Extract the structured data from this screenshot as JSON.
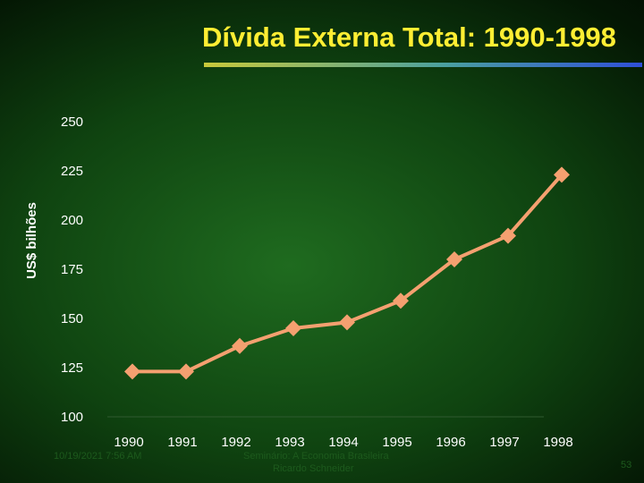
{
  "slide": {
    "title": "Dívida Externa Total: 1990-1998",
    "footer_date": "10/19/2021 7:56 AM",
    "footer_source": "Seminário: A Economia Brasileira",
    "footer_author": "Ricardo Schneider",
    "page_number": "53"
  },
  "colors": {
    "line": "#f4a070",
    "title": "#ffee33",
    "axis_line": "#2f5a2f"
  },
  "chart_data": {
    "type": "line",
    "title": "Dívida Externa Total: 1990-1998",
    "ylabel": "US$ bilhões",
    "xlabel": "",
    "categories": [
      "1990",
      "1991",
      "1992",
      "1993",
      "1994",
      "1995",
      "1996",
      "1997",
      "1998"
    ],
    "series": [
      {
        "values": [
          123,
          123,
          136,
          145,
          148,
          159,
          180,
          192,
          223
        ]
      }
    ],
    "ylim": [
      100,
      250
    ],
    "yticks": [
      100,
      125,
      150,
      175,
      200,
      225,
      250
    ],
    "grid": false,
    "legend": "none",
    "marker": "diamond"
  }
}
